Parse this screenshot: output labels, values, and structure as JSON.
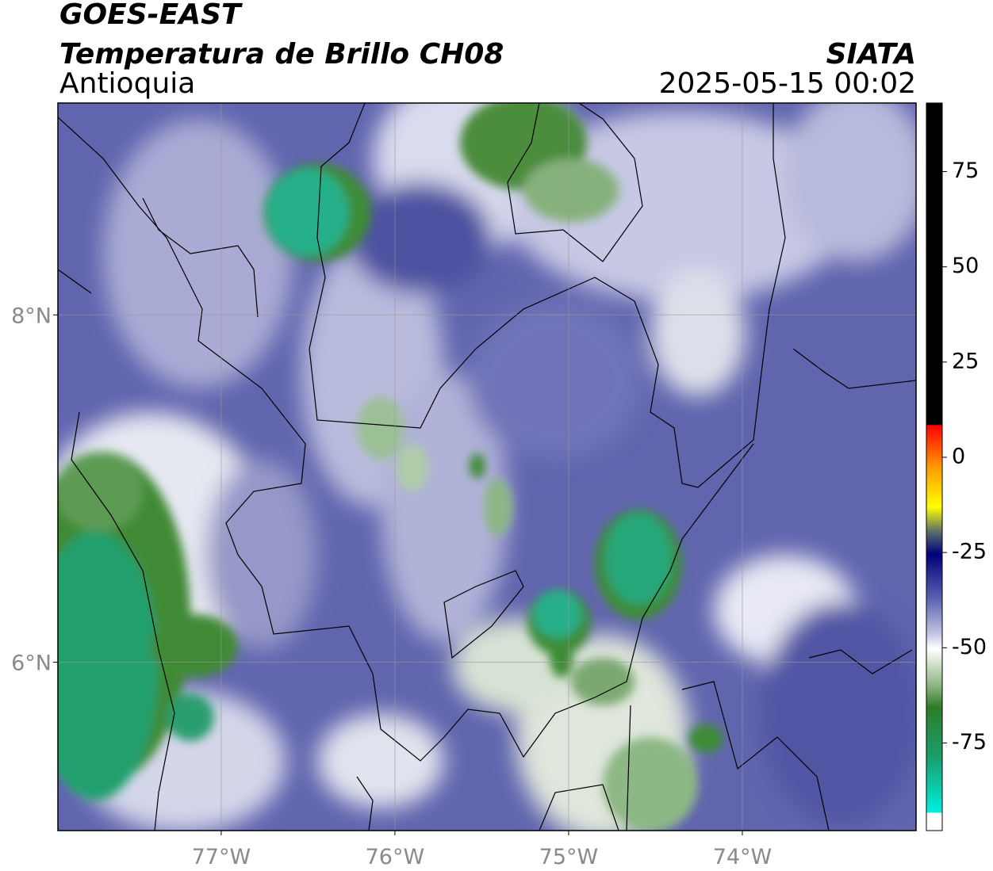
{
  "chart_data": {
    "type": "map",
    "title": "GOES-EAST",
    "subtitle": "Temperatura de Brillo CH08",
    "region": "Antioquia",
    "source": "SIATA",
    "datetime": "2025-05-15 00:02",
    "xlim": [
      -77.94,
      -73.0
    ],
    "ylim": [
      5.03,
      9.22
    ],
    "xticks": [
      {
        "value": -77,
        "label": "77°W"
      },
      {
        "value": -76,
        "label": "76°W"
      },
      {
        "value": -75,
        "label": "75°W"
      },
      {
        "value": -74,
        "label": "74°W"
      }
    ],
    "yticks": [
      {
        "value": 8,
        "label": "8°N"
      },
      {
        "value": 6,
        "label": "6°N"
      }
    ],
    "grid": true,
    "colorbar": {
      "lim": [
        -98,
        93
      ],
      "ticks": [
        75,
        50,
        25,
        0,
        -25,
        -50,
        -75
      ]
    }
  }
}
